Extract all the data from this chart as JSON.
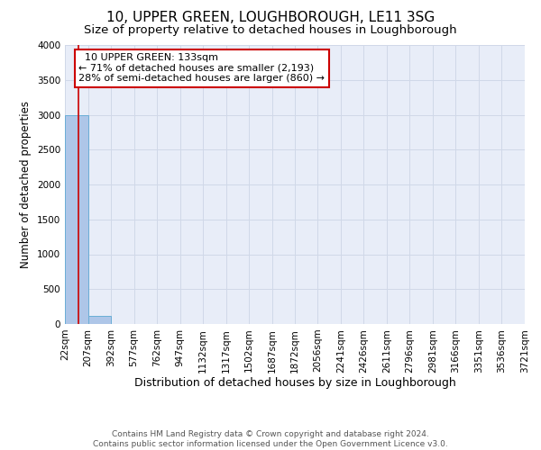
{
  "title": "10, UPPER GREEN, LOUGHBOROUGH, LE11 3SG",
  "subtitle": "Size of property relative to detached houses in Loughborough",
  "xlabel": "Distribution of detached houses by size in Loughborough",
  "ylabel": "Number of detached properties",
  "footer_line1": "Contains HM Land Registry data © Crown copyright and database right 2024.",
  "footer_line2": "Contains public sector information licensed under the Open Government Licence v3.0.",
  "bin_edges": [
    22,
    207,
    392,
    577,
    762,
    947,
    1132,
    1317,
    1502,
    1687,
    1872,
    2056,
    2241,
    2426,
    2611,
    2796,
    2981,
    3166,
    3351,
    3536,
    3721
  ],
  "bin_labels": [
    "22sqm",
    "207sqm",
    "392sqm",
    "577sqm",
    "762sqm",
    "947sqm",
    "1132sqm",
    "1317sqm",
    "1502sqm",
    "1687sqm",
    "1872sqm",
    "2056sqm",
    "2241sqm",
    "2426sqm",
    "2611sqm",
    "2796sqm",
    "2981sqm",
    "3166sqm",
    "3351sqm",
    "3536sqm",
    "3721sqm"
  ],
  "bar_heights": [
    2990,
    110,
    5,
    2,
    1,
    1,
    1,
    1,
    0,
    0,
    0,
    0,
    0,
    0,
    0,
    0,
    0,
    0,
    0,
    0
  ],
  "bar_color": "#aec6e8",
  "bar_edge_color": "#6aaed6",
  "vline_color": "#cc0000",
  "vline_x": 133,
  "annotation_text_line1": "10 UPPER GREEN: 133sqm",
  "annotation_text_line2": "← 71% of detached houses are smaller (2,193)",
  "annotation_text_line3": "28% of semi-detached houses are larger (860) →",
  "annotation_box_color": "#ffffff",
  "annotation_box_edge": "#cc0000",
  "ylim": [
    0,
    4000
  ],
  "yticks": [
    0,
    500,
    1000,
    1500,
    2000,
    2500,
    3000,
    3500,
    4000
  ],
  "grid_color": "#d0d8e8",
  "bg_color": "#e8edf8",
  "title_fontsize": 11,
  "subtitle_fontsize": 9.5,
  "xlabel_fontsize": 9,
  "ylabel_fontsize": 8.5,
  "tick_fontsize": 7.5,
  "annotation_fontsize": 8,
  "footer_fontsize": 6.5
}
